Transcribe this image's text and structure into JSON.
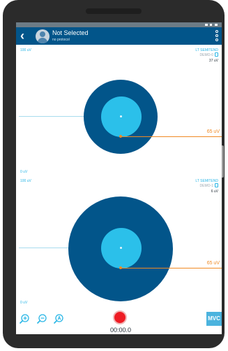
{
  "colors": {
    "app_bar": "#02558a",
    "target_ring": "#02558a",
    "live_disc": "#2bc0ea",
    "threshold": "#f08a24",
    "scale_text": "#29b6e6",
    "record": "#ee1c24",
    "mvc_button": "#4bb3de"
  },
  "header": {
    "back_icon": "chevron-left-icon",
    "avatar_icon": "person-avatar-icon",
    "patient_name": "Not Selected",
    "protocol": "no protocol",
    "menu_icon": "more-vertical-icon"
  },
  "channels": [
    {
      "scale_max": "100 uV",
      "scale_min": "0 uV",
      "muscle": "LT SEMITEND",
      "device": "DEMO-0",
      "live_value": "37 uV",
      "threshold_label": "65 uV"
    },
    {
      "scale_max": "100 uV",
      "scale_min": "0 uV",
      "muscle": "LT SEMITEND",
      "device": "DEMO-1",
      "live_value": "6 uV",
      "threshold_label": "65 uV"
    }
  ],
  "footer": {
    "zoom_icons": [
      "zoom-in-icon",
      "zoom-out-icon",
      "zoom-reset-icon"
    ],
    "record_icon": "record-icon",
    "timer": "00:00.0",
    "mvc_label": "MVC"
  }
}
